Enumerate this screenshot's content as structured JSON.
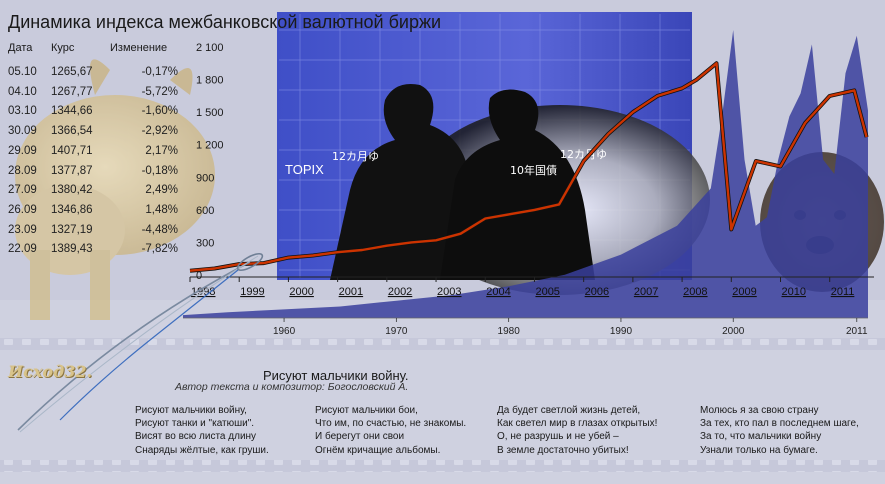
{
  "title": "Динамика индекса межбанковской валютной биржи",
  "table": {
    "headers": {
      "date": "Дата",
      "rate": "Курс",
      "change": "Изменение"
    },
    "rows": [
      {
        "date": "05.10",
        "rate": "1265,67",
        "change": "-0,17%"
      },
      {
        "date": "04.10",
        "rate": "1267,77",
        "change": "-5,72%"
      },
      {
        "date": "03.10",
        "rate": "1344,66",
        "change": "-1,60%"
      },
      {
        "date": "30.09",
        "rate": "1366,54",
        "change": "-2,92%"
      },
      {
        "date": "29.09",
        "rate": "1407,71",
        "change": "2,17%"
      },
      {
        "date": "28.09",
        "rate": "1377,87",
        "change": "-0,18%"
      },
      {
        "date": "27.09",
        "rate": "1380,42",
        "change": "2,49%"
      },
      {
        "date": "26.09",
        "rate": "1346,86",
        "change": "1,48%"
      },
      {
        "date": "23.09",
        "rate": "1327,19",
        "change": "-4,48%"
      },
      {
        "date": "22.09",
        "rate": "1389,43",
        "change": "-7,82%"
      }
    ]
  },
  "photo_labels": {
    "topix": "TOPIX",
    "months": "12カ月ゆ",
    "months2": "12カ月ゆ",
    "bond": "10年国債"
  },
  "chart_data": [
    {
      "type": "line",
      "x": [
        1998,
        1998.5,
        1999,
        1999.5,
        2000,
        2000.5,
        2001,
        2001.5,
        2002,
        2002.5,
        2003,
        2003.5,
        2004,
        2004.5,
        2005,
        2005.5,
        2006,
        2006.5,
        2007,
        2007.5,
        2008,
        2008.3,
        2008.7,
        2009,
        2009.5,
        2010,
        2010.5,
        2011,
        2011.5,
        2011.75
      ],
      "values": [
        40,
        60,
        100,
        110,
        160,
        180,
        210,
        230,
        270,
        300,
        320,
        380,
        520,
        560,
        600,
        650,
        1050,
        1300,
        1500,
        1650,
        1720,
        1800,
        1950,
        420,
        1050,
        1000,
        1400,
        1650,
        1700,
        1270
      ],
      "x_ticks": [
        "1998",
        "1999",
        "2000",
        "2001",
        "2002",
        "2003",
        "2004",
        "2005",
        "2006",
        "2007",
        "2008",
        "2009",
        "2010",
        "2011"
      ],
      "y_ticks": [
        "0",
        "300",
        "600",
        "900",
        "1 200",
        "1 500",
        "1 800",
        "2 100"
      ],
      "ylim": [
        0,
        2100
      ],
      "color": "#cc3300"
    },
    {
      "type": "area",
      "x": [
        1951,
        1955,
        1960,
        1965,
        1970,
        1975,
        1980,
        1985,
        1990,
        1995,
        1998,
        1999,
        2000,
        2001,
        2002,
        2003,
        2004,
        2005,
        2006,
        2007,
        2008,
        2009,
        2010,
        2011,
        2012
      ],
      "values": [
        0.01,
        0.02,
        0.03,
        0.04,
        0.06,
        0.08,
        0.11,
        0.15,
        0.22,
        0.32,
        0.45,
        0.7,
        1.0,
        0.55,
        0.32,
        0.35,
        0.55,
        0.7,
        0.78,
        0.95,
        0.55,
        0.5,
        0.85,
        0.98,
        0.72
      ],
      "x_ticks": [
        "1960",
        "1970",
        "1980",
        "1990",
        "2000",
        "2011"
      ],
      "color": "#3a3f9c"
    }
  ],
  "poem": {
    "title": "Рисуют мальчики войну.",
    "author": "Автор текста и композитор: Богословский А.",
    "stanzas": [
      [
        "Рисуют мальчики войну,",
        "Рисуют танки и \"катюши\".",
        "Висят во всю листа длину",
        "Снаряды жёлтые, как груши."
      ],
      [
        "Рисуют мальчики бои,",
        "Что им, по счастью, не знакомы.",
        "И берегут они свои",
        "Огнём кричащие альбомы."
      ],
      [
        "Да будет светлой жизнь детей,",
        "Как светел мир в глазах открытых!",
        "О, не разрушь и не убей –",
        "В земле достаточно убитых!"
      ],
      [
        "Молюсь я за свою страну",
        "За тех, кто пал в последнем шаге,",
        "За то, что мальчики войну",
        "Узнали только на бумаге."
      ]
    ]
  },
  "logo_text": "Исход32."
}
